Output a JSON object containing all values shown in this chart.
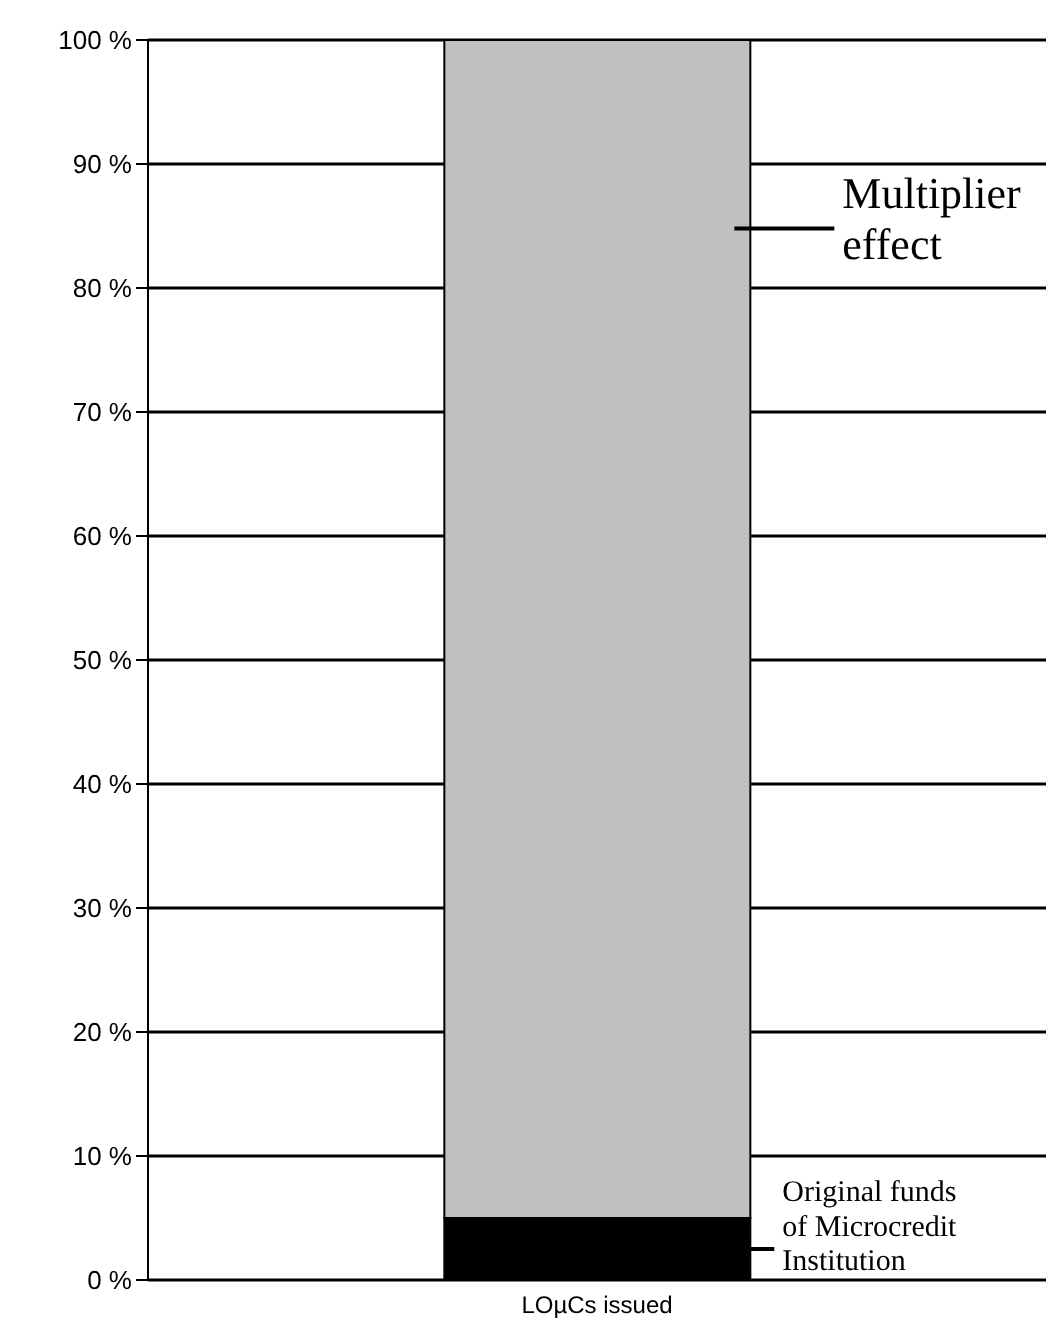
{
  "chart_data": {
    "type": "bar",
    "stacked": true,
    "categories": [
      "LOµCs issued"
    ],
    "series": [
      {
        "name": "Original funds of Microcredit Institution",
        "color": "#000000",
        "values": [
          5
        ]
      },
      {
        "name": "Multiplier effect",
        "color": "#c0c0c0",
        "values": [
          95
        ]
      }
    ],
    "ylim": [
      0,
      100
    ],
    "yticks": [
      {
        "value": 0,
        "label": "0 %"
      },
      {
        "value": 10,
        "label": "10 %"
      },
      {
        "value": 20,
        "label": "20 %"
      },
      {
        "value": 30,
        "label": "30 %"
      },
      {
        "value": 40,
        "label": "40 %"
      },
      {
        "value": 50,
        "label": "50 %"
      },
      {
        "value": 60,
        "label": "60 %"
      },
      {
        "value": 70,
        "label": "70 %"
      },
      {
        "value": 80,
        "label": "80 %"
      },
      {
        "value": 90,
        "label": "90 %"
      },
      {
        "value": 100,
        "label": "100 %"
      }
    ],
    "grid": "y",
    "legend": "right"
  }
}
